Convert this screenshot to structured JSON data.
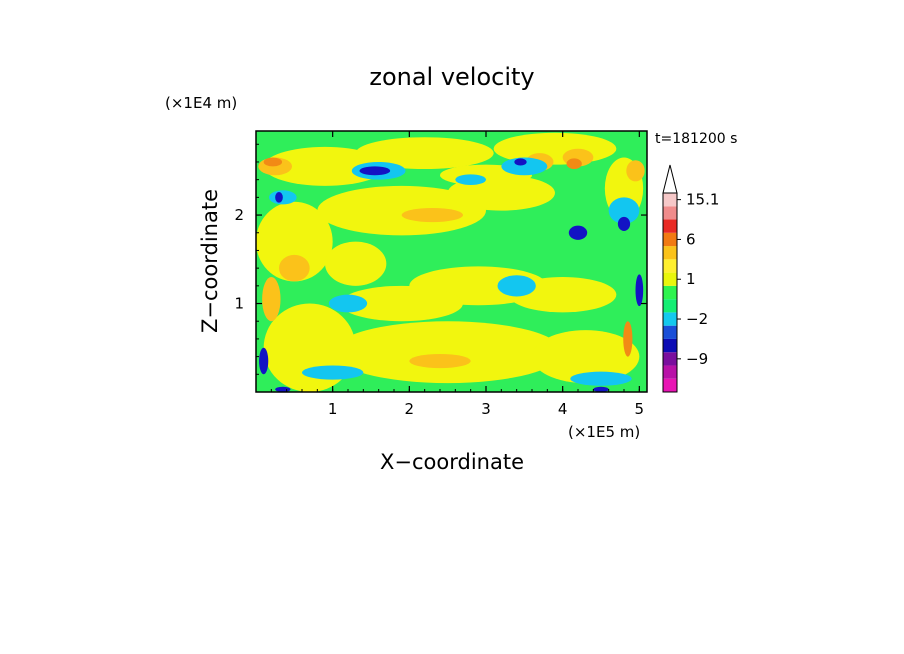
{
  "chart_data": {
    "type": "heatmap",
    "title": "zonal velocity",
    "xlabel": "X−coordinate",
    "ylabel": "Z−coordinate",
    "x_scale_label": "(×1E5 m)",
    "y_scale_label": "(×1E4 m)",
    "time_label": "t=181200 s",
    "xlim": [
      0,
      5.1
    ],
    "ylim": [
      0,
      2.95
    ],
    "x_ticks": [
      "1",
      "2",
      "3",
      "4",
      "5"
    ],
    "x_tick_values": [
      1,
      2,
      3,
      4,
      5
    ],
    "y_ticks": [
      "1",
      "2"
    ],
    "y_tick_values": [
      1,
      2
    ],
    "colorbar": {
      "tick_labels": [
        "15.1",
        "6",
        "1",
        "−2",
        "−9"
      ],
      "tick_values": [
        15.1,
        6,
        1,
        -2,
        -9
      ],
      "levels": [
        -15,
        -12,
        -9,
        -6,
        -4,
        -2,
        -1,
        0,
        1,
        2,
        4,
        6,
        9,
        12,
        15.1
      ],
      "colors": [
        "#e815b4",
        "#b812a8",
        "#7a0f9e",
        "#0c0cb4",
        "#1a4fd8",
        "#13c9ee",
        "#13ee73",
        "#2ef34f",
        "#e9f60c",
        "#ffef2f",
        "#fbc21a",
        "#f27a12",
        "#e82a24",
        "#f08c8c",
        "#f6c8c8"
      ],
      "overflow_color": "#ffffff"
    },
    "field_colors": {
      "neg_strong": "#1313c4",
      "neg_mid": "#13c6f0",
      "neutral": "#2fee5a",
      "pos_weak": "#f2f60e",
      "pos_mid": "#fbc21a",
      "pos_strong": "#f28a15"
    }
  }
}
